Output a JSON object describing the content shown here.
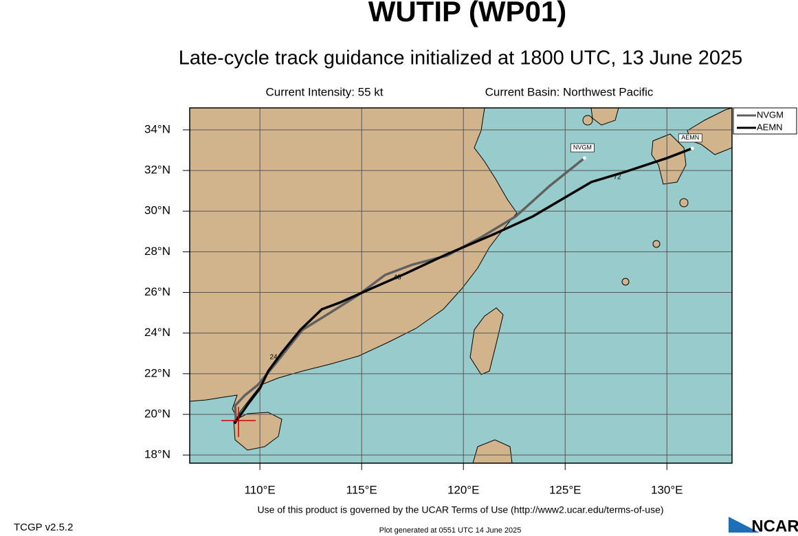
{
  "chart_data": {
    "type": "track",
    "title": "WUTIP (WP01)",
    "subtitle": "Late-cycle track guidance initialized at 1800 UTC, 13 June 2025",
    "intensity": "Current Intensity: 55 kt",
    "basin": "Current Basin: Northwest Pacific",
    "xlim": [
      106.55,
      133.2
    ],
    "ylim": [
      17.6,
      35.08
    ],
    "xticks": [
      {
        "value": 110,
        "label": "110°E"
      },
      {
        "value": 115,
        "label": "115°E"
      },
      {
        "value": 120,
        "label": "120°E"
      },
      {
        "value": 125,
        "label": "125°E"
      },
      {
        "value": 130,
        "label": "130°E"
      }
    ],
    "yticks": [
      {
        "value": 18,
        "label": "18°N"
      },
      {
        "value": 20,
        "label": "20°N"
      },
      {
        "value": 22,
        "label": "22°N"
      },
      {
        "value": 24,
        "label": "24°N"
      },
      {
        "value": 26,
        "label": "26°N"
      },
      {
        "value": 28,
        "label": "28°N"
      },
      {
        "value": 30,
        "label": "30°N"
      },
      {
        "value": 32,
        "label": "32°N"
      },
      {
        "value": 34,
        "label": "34°N"
      }
    ],
    "grid": true,
    "legend": "top-right",
    "hour_labels": [
      "24",
      "48",
      "72"
    ],
    "series": [
      {
        "name": "NVGM",
        "color": "#606060",
        "x": [
          108.82,
          108.78,
          109.26,
          109.9,
          110.74,
          112.09,
          113.45,
          114.8,
          116.15,
          117.5,
          119.19,
          120.88,
          122.57,
          124.26,
          125.95
        ],
        "values": [
          19.69,
          20.43,
          20.94,
          21.45,
          22.46,
          24.16,
          25.0,
          25.85,
          26.86,
          27.37,
          27.81,
          28.72,
          29.74,
          31.26,
          32.61
        ]
      },
      {
        "name": "AEMN",
        "color": "#000000",
        "x": [
          108.75,
          109.39,
          110.0,
          110.41,
          111.08,
          111.99,
          113.04,
          113.95,
          115.47,
          117.16,
          119.19,
          121.55,
          123.41,
          126.28,
          127.97,
          130.0,
          131.25
        ],
        "values": [
          19.55,
          20.47,
          21.28,
          22.13,
          23.04,
          24.16,
          25.17,
          25.51,
          26.19,
          26.93,
          27.88,
          28.89,
          29.74,
          31.43,
          31.94,
          32.61,
          33.09
        ]
      }
    ]
  },
  "footer": {
    "terms": "Use of this product is governed by the UCAR Terms of Use (http://www2.ucar.edu/terms-of-use)",
    "version": "TCGP v2.5.2",
    "generated": "Plot generated at 0551 UTC   14 June 2025",
    "logo": "NCAR"
  }
}
